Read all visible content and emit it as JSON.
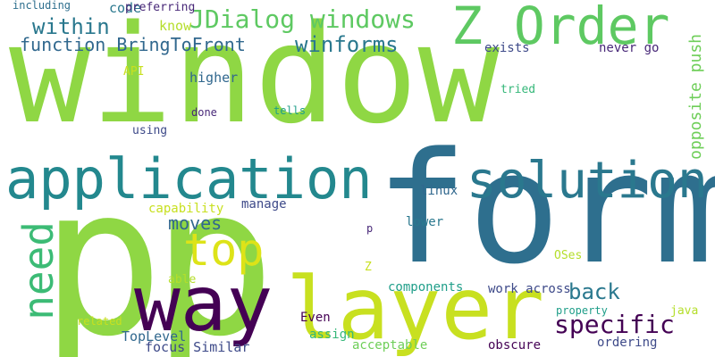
{
  "words": [
    {
      "text": "window",
      "color": "#8fd744"
    },
    {
      "text": "p",
      "color": "#8fd744"
    },
    {
      "text": "p",
      "color": "#8fd744"
    },
    {
      "text": "form",
      "color": "#2e6f8e"
    },
    {
      "text": "layer",
      "color": "#c8e020"
    },
    {
      "text": "application",
      "color": "#23888e"
    },
    {
      "text": "way",
      "color": "#440154"
    },
    {
      "text": "solution",
      "color": "#2a788e"
    },
    {
      "text": "Z Order",
      "color": "#5ec962"
    },
    {
      "text": "top",
      "color": "#dde318"
    },
    {
      "text": "need",
      "color": "#3cbb75"
    },
    {
      "text": "JDialog windows",
      "color": "#5ec962"
    },
    {
      "text": "specific",
      "color": "#440154"
    },
    {
      "text": "back",
      "color": "#2a788e"
    },
    {
      "text": "within",
      "color": "#2a788e"
    },
    {
      "text": "winforms",
      "color": "#2a788e"
    },
    {
      "text": "function BringToFront",
      "color": "#31688e"
    },
    {
      "text": "moves",
      "color": "#31688e"
    },
    {
      "text": "opposite push",
      "color": "#6ece58"
    },
    {
      "text": "including",
      "color": "#2e6f8e"
    },
    {
      "text": "code",
      "color": "#2a788e"
    },
    {
      "text": "preferring",
      "color": "#482878"
    },
    {
      "text": "know",
      "color": "#b5de2b"
    },
    {
      "text": "exists",
      "color": "#3e4a89"
    },
    {
      "text": "never go",
      "color": "#482878"
    },
    {
      "text": "API",
      "color": "#c8e020"
    },
    {
      "text": "higher",
      "color": "#31688e"
    },
    {
      "text": "tried",
      "color": "#35b779"
    },
    {
      "text": "done",
      "color": "#482878"
    },
    {
      "text": "tells",
      "color": "#1f9e89"
    },
    {
      "text": "using",
      "color": "#3e4a89"
    },
    {
      "text": "linux",
      "color": "#31688e"
    },
    {
      "text": "capability",
      "color": "#c8e020"
    },
    {
      "text": "manage",
      "color": "#3e4a89"
    },
    {
      "text": "lower",
      "color": "#2a788e"
    },
    {
      "text": "p",
      "color": "#482878"
    },
    {
      "text": "Z",
      "color": "#c8e020"
    },
    {
      "text": "OSes",
      "color": "#b5de2b"
    },
    {
      "text": "able",
      "color": "#b5de2b"
    },
    {
      "text": "components",
      "color": "#1f9e89"
    },
    {
      "text": "work across",
      "color": "#3e4a89"
    },
    {
      "text": "related",
      "color": "#c8e020"
    },
    {
      "text": "Even",
      "color": "#440154"
    },
    {
      "text": "property",
      "color": "#1f9e89"
    },
    {
      "text": "java",
      "color": "#b5de2b"
    },
    {
      "text": "assign",
      "color": "#35b779"
    },
    {
      "text": "ordering",
      "color": "#3e4a89"
    },
    {
      "text": "TopLevel",
      "color": "#31688e"
    },
    {
      "text": "focus Similar",
      "color": "#3e4a89"
    },
    {
      "text": "acceptable",
      "color": "#6ece58"
    },
    {
      "text": "obscure",
      "color": "#440154"
    }
  ]
}
